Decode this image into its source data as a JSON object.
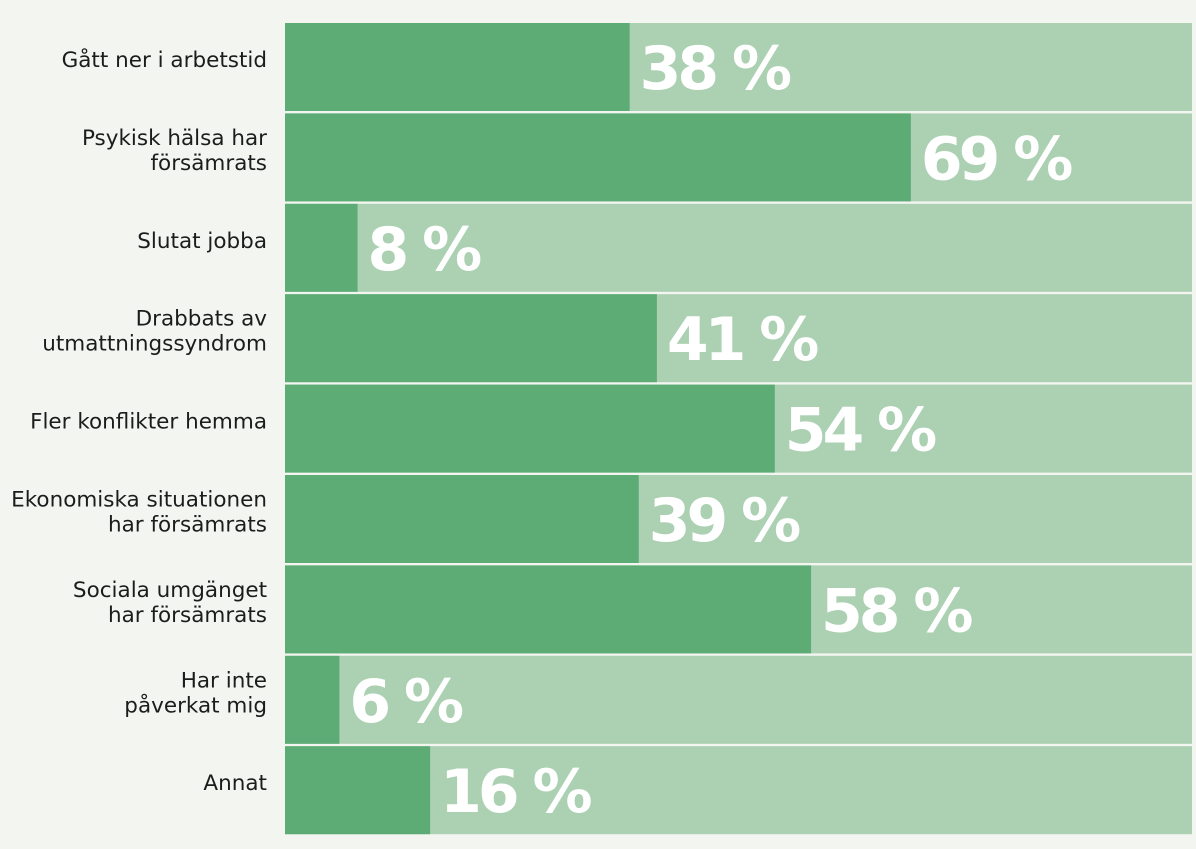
{
  "colors": {
    "background": "#f2f5f0",
    "track": "#abd0b2",
    "bar": "#5dab75",
    "value_text": "#ffffff",
    "label_text": "#1c1c1c"
  },
  "chart_data": {
    "type": "bar",
    "orientation": "horizontal",
    "unit": "%",
    "xlim": [
      0,
      100
    ],
    "grid": false,
    "legend": "none",
    "categories": [
      [
        "Gått ner i arbetstid"
      ],
      [
        "Psykisk hälsa har",
        "försämrats"
      ],
      [
        "Slutat jobba"
      ],
      [
        "Drabbats av",
        "utmattningssyndrom"
      ],
      [
        "Fler konflikter hemma"
      ],
      [
        "Ekonomiska situationen",
        "har försämrats"
      ],
      [
        "Sociala umgänget",
        "har försämrats"
      ],
      [
        "Har inte",
        "påverkat mig"
      ],
      [
        "Annat"
      ]
    ],
    "values": [
      38,
      69,
      8,
      41,
      54,
      39,
      58,
      6,
      16
    ],
    "value_labels": [
      "38 %",
      "69 %",
      "8 %",
      "41 %",
      "54 %",
      "39 %",
      "58 %",
      "6 %",
      "16 %"
    ]
  }
}
